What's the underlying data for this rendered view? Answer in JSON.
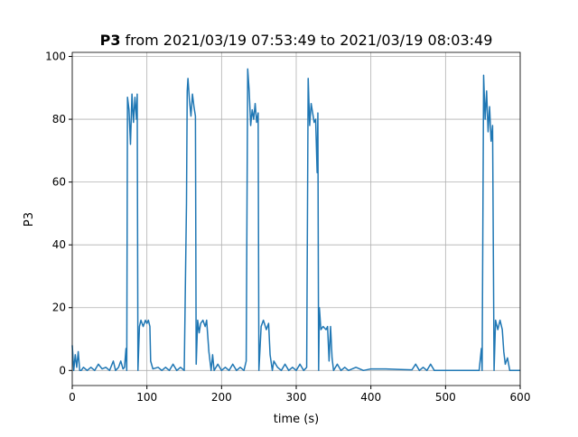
{
  "chart_data": {
    "type": "line",
    "title_bold": "P3",
    "title": "from 2021/03/19 07:53:49 to 2021/03/19 08:03:49",
    "xlabel": "time (s)",
    "ylabel": "P3",
    "xlim": [
      0,
      600
    ],
    "ylim": [
      -4.8,
      101.3
    ],
    "xticks": [
      0,
      100,
      200,
      300,
      400,
      500,
      600
    ],
    "yticks": [
      0,
      20,
      40,
      60,
      80,
      100
    ],
    "grid": true,
    "series": [
      {
        "name": "P3",
        "color": "#1f77b4",
        "x": [
          0,
          2,
          4,
          6,
          8,
          10,
          12,
          15,
          20,
          25,
          30,
          35,
          40,
          45,
          50,
          55,
          58,
          62,
          65,
          68,
          70,
          72,
          73,
          74,
          76,
          78,
          80,
          82,
          84,
          86,
          87,
          88,
          90,
          92,
          95,
          98,
          100,
          102,
          104,
          105,
          108,
          115,
          120,
          125,
          130,
          135,
          140,
          145,
          150,
          153,
          154,
          155,
          157,
          159,
          161,
          163,
          165,
          166,
          168,
          170,
          172,
          175,
          178,
          180,
          183,
          186,
          188,
          190,
          195,
          200,
          205,
          210,
          215,
          220,
          225,
          230,
          233,
          235,
          237,
          239,
          241,
          243,
          245,
          247,
          249,
          250,
          253,
          256,
          260,
          263,
          265,
          268,
          270,
          275,
          280,
          285,
          290,
          295,
          300,
          305,
          310,
          314,
          316,
          318,
          320,
          322,
          324,
          326,
          328,
          329,
          330,
          331,
          333,
          336,
          340,
          342,
          344,
          346,
          348,
          350,
          355,
          360,
          365,
          370,
          380,
          390,
          400,
          420,
          440,
          455,
          460,
          465,
          470,
          475,
          480,
          485,
          500,
          520,
          545,
          548,
          549,
          551,
          553,
          555,
          557,
          559,
          561,
          563,
          565,
          567,
          570,
          573,
          576,
          578,
          580,
          583,
          586,
          590,
          600
        ],
        "values": [
          8,
          0,
          5,
          1,
          6,
          0,
          0,
          1,
          0,
          1,
          0,
          2,
          0.5,
          1,
          0,
          3,
          0,
          1,
          3,
          0.5,
          1,
          7,
          0,
          87,
          83,
          72,
          88,
          79,
          87,
          80,
          88,
          0,
          14,
          16,
          14,
          16,
          15,
          16,
          14,
          3,
          0.5,
          1,
          0,
          1,
          0,
          2,
          0,
          1,
          0,
          53,
          89,
          93,
          86,
          81,
          88,
          84,
          81,
          2,
          16,
          12,
          15,
          16,
          14,
          16,
          6,
          0,
          5,
          0,
          2,
          0,
          1,
          0,
          2,
          0,
          1,
          0,
          3,
          96,
          89,
          78,
          83,
          80,
          85,
          79,
          82,
          0,
          14,
          16,
          13,
          15,
          5,
          0,
          3,
          1,
          0,
          2,
          0,
          1,
          0,
          2,
          0,
          1,
          93,
          78,
          85,
          82,
          79,
          80,
          63,
          82,
          0,
          20,
          13,
          14,
          13,
          14,
          3,
          14,
          4,
          0,
          2,
          0,
          1,
          0,
          1,
          0,
          0.5,
          0.5,
          0.3,
          0.2,
          2,
          0,
          1,
          0,
          2,
          0,
          0,
          0,
          0,
          7,
          0,
          94,
          80,
          89,
          76,
          84,
          73,
          78,
          0,
          16,
          13,
          16,
          13,
          6,
          2,
          4,
          0,
          0,
          0
        ]
      }
    ]
  }
}
